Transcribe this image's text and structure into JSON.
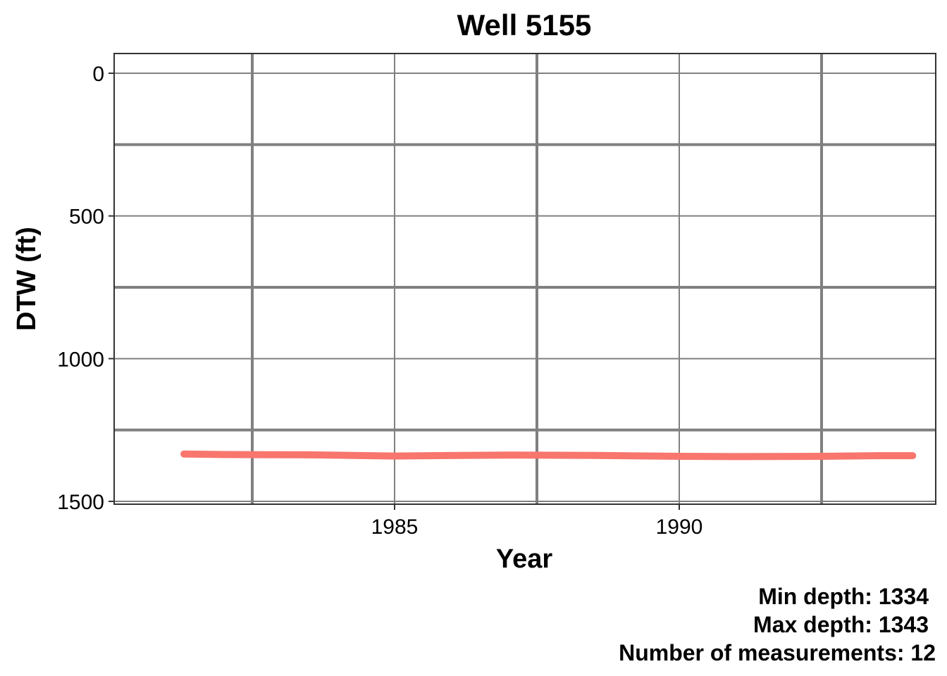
{
  "chart_data": {
    "type": "line",
    "title": "Well 5155",
    "xlabel": "Year",
    "ylabel": "DTW (ft)",
    "x_ticks": [
      1985,
      1990
    ],
    "y_ticks": [
      0,
      500,
      1000,
      1500
    ],
    "xlim": [
      1980.0,
      1994.5
    ],
    "ylim": [
      0,
      1500
    ],
    "y_reversed": true,
    "grid": true,
    "series": [
      {
        "color": "#F8766D",
        "points": [
          {
            "x": 1981.3,
            "y": 1334
          },
          {
            "x": 1982.0,
            "y": 1336
          },
          {
            "x": 1983.5,
            "y": 1337
          },
          {
            "x": 1985.0,
            "y": 1341
          },
          {
            "x": 1986.2,
            "y": 1339
          },
          {
            "x": 1987.0,
            "y": 1338
          },
          {
            "x": 1988.5,
            "y": 1339
          },
          {
            "x": 1990.0,
            "y": 1342
          },
          {
            "x": 1991.0,
            "y": 1343
          },
          {
            "x": 1992.5,
            "y": 1342
          },
          {
            "x": 1993.5,
            "y": 1340
          },
          {
            "x": 1994.1,
            "y": 1340
          }
        ]
      }
    ],
    "caption_lines": [
      "Min depth: 1334",
      "Max depth: 1343",
      "Number of measurements: 12"
    ]
  }
}
